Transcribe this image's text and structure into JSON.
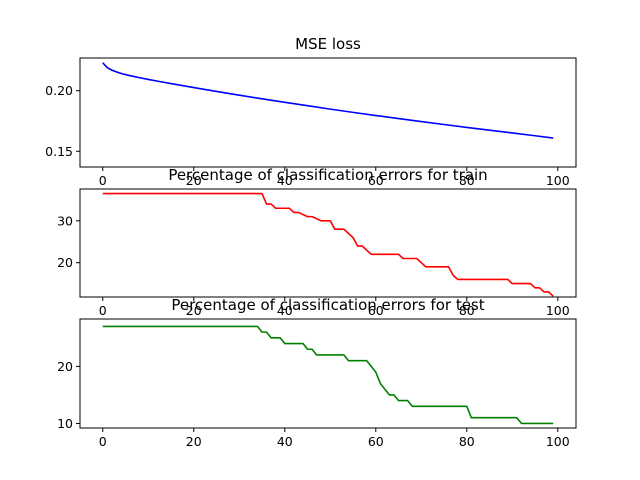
{
  "chart_data": [
    {
      "type": "line",
      "title": "MSE loss",
      "xlabel": "",
      "ylabel": "",
      "xlim": [
        -5,
        104
      ],
      "ylim": [
        0.137,
        0.227
      ],
      "xticks": [
        0,
        20,
        40,
        60,
        80,
        100
      ],
      "yticks": [
        0.15,
        0.2
      ],
      "ytick_labels": [
        "0.15",
        "0.20"
      ],
      "grid": false,
      "color": "#0000ff",
      "series": [
        {
          "x": [
            0,
            1,
            2,
            3,
            4,
            5,
            6,
            8,
            10,
            12,
            15,
            20,
            25,
            30,
            35,
            40,
            45,
            50,
            55,
            60,
            65,
            70,
            75,
            80,
            85,
            90,
            95,
            99
          ],
          "y": [
            0.223,
            0.219,
            0.217,
            0.2155,
            0.2143,
            0.2133,
            0.2124,
            0.2108,
            0.2093,
            0.2079,
            0.2059,
            0.2026,
            0.1994,
            0.1963,
            0.1933,
            0.1904,
            0.1876,
            0.1848,
            0.1821,
            0.1795,
            0.177,
            0.1745,
            0.1721,
            0.1697,
            0.1674,
            0.1651,
            0.1628,
            0.1609
          ]
        }
      ]
    },
    {
      "type": "line",
      "title": "Percentage of classification errors for train",
      "xlabel": "",
      "ylabel": "",
      "xlim": [
        -5,
        104
      ],
      "ylim": [
        11.8,
        37.6
      ],
      "xticks": [
        0,
        20,
        40,
        60,
        80,
        100
      ],
      "yticks": [
        20,
        30
      ],
      "ytick_labels": [
        "20",
        "30"
      ],
      "grid": false,
      "color": "#ff0000",
      "series": [
        {
          "x": [
            0,
            35,
            36,
            37,
            38,
            41,
            42,
            43,
            45,
            46,
            48,
            50,
            51,
            53,
            54,
            55,
            56,
            57,
            58,
            59,
            60,
            61,
            62,
            63,
            64,
            65,
            66,
            67,
            68,
            69,
            70,
            71,
            72,
            73,
            74,
            75,
            76,
            77,
            78,
            79,
            80,
            81,
            82,
            83,
            84,
            85,
            86,
            87,
            88,
            89,
            90,
            91,
            92,
            93,
            94,
            95,
            96,
            97,
            98,
            99
          ],
          "y": [
            36.5,
            36.5,
            34,
            34,
            33,
            33,
            32,
            32,
            31,
            31,
            30,
            30,
            28,
            28,
            27,
            26,
            24,
            24,
            23,
            22,
            22,
            22,
            22,
            22,
            22,
            22,
            21,
            21,
            21,
            21,
            20,
            19,
            19,
            19,
            19,
            19,
            19,
            17,
            16,
            16,
            16,
            16,
            16,
            16,
            16,
            16,
            16,
            16,
            16,
            16,
            15,
            15,
            15,
            15,
            15,
            14,
            14,
            13,
            13,
            12
          ]
        }
      ]
    },
    {
      "type": "line",
      "title": "Percentage of classification errors for test",
      "xlabel": "",
      "ylabel": "",
      "xlim": [
        -5,
        104
      ],
      "ylim": [
        9.2,
        28.3
      ],
      "xticks": [
        0,
        20,
        40,
        60,
        80,
        100
      ],
      "yticks": [
        10,
        20
      ],
      "ytick_labels": [
        "10",
        "20"
      ],
      "grid": false,
      "color": "#008000",
      "series": [
        {
          "x": [
            0,
            34,
            35,
            36,
            37,
            38,
            39,
            40,
            41,
            42,
            43,
            44,
            45,
            46,
            47,
            48,
            49,
            50,
            51,
            52,
            53,
            54,
            55,
            56,
            57,
            58,
            59,
            60,
            61,
            62,
            63,
            64,
            65,
            66,
            67,
            68,
            69,
            70,
            75,
            80,
            81,
            82,
            83,
            85,
            90,
            91,
            92,
            95,
            99
          ],
          "y": [
            27,
            27,
            26,
            26,
            25,
            25,
            25,
            24,
            24,
            24,
            24,
            24,
            23,
            23,
            22,
            22,
            22,
            22,
            22,
            22,
            22,
            21,
            21,
            21,
            21,
            21,
            20,
            19,
            17,
            16,
            15,
            15,
            14,
            14,
            14,
            13,
            13,
            13,
            13,
            13,
            11,
            11,
            11,
            11,
            11,
            11,
            10,
            10,
            10
          ]
        }
      ]
    }
  ]
}
